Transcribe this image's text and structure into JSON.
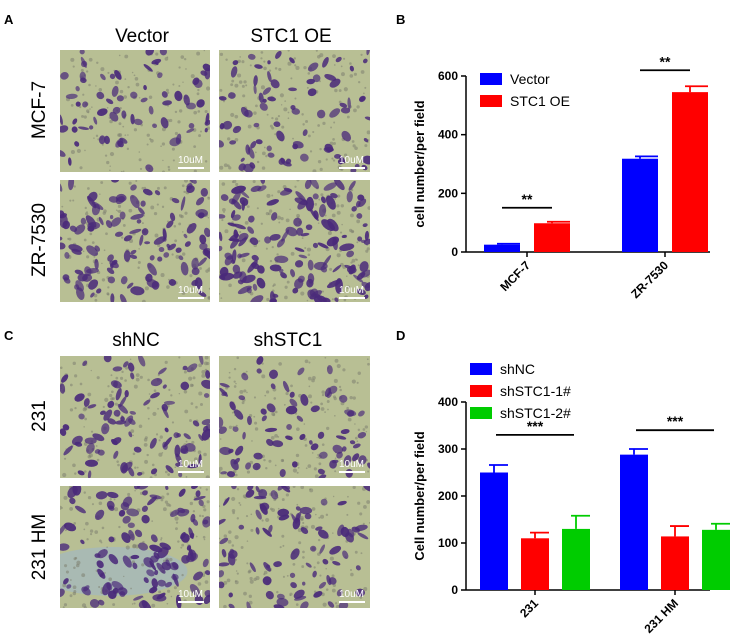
{
  "panels": {
    "A": {
      "letter": "A",
      "columns": [
        "Vector",
        "STC1 OE"
      ],
      "rows": [
        "MCF-7",
        "ZR-7530"
      ],
      "scale_label": "10uM"
    },
    "C": {
      "letter": "C",
      "columns": [
        "shNC",
        "shSTC1"
      ],
      "rows": [
        "231",
        "231 HM"
      ],
      "scale_label": "10uM"
    },
    "B": {
      "letter": "B"
    },
    "D": {
      "letter": "D"
    }
  },
  "colors": {
    "blue": "#0000ff",
    "red": "#ff0000",
    "green": "#00cc00",
    "micro_bg": "#b8bf94",
    "cell": "#4a2a7a"
  },
  "chart_data": [
    {
      "type": "bar",
      "panel": "B",
      "ylabel": "cell number/per field",
      "ylim": [
        0,
        600
      ],
      "yticks": [
        0,
        200,
        400,
        600
      ],
      "categories": [
        "MCF-7",
        "ZR-7530"
      ],
      "series": [
        {
          "name": "Vector",
          "color": "#0000ff",
          "values": [
            25,
            318
          ],
          "errors": [
            3,
            8
          ]
        },
        {
          "name": "STC1 OE",
          "color": "#ff0000",
          "values": [
            98,
            545
          ],
          "errors": [
            5,
            20
          ]
        }
      ],
      "significance": [
        "**",
        "**"
      ],
      "legend": "top-left"
    },
    {
      "type": "bar",
      "panel": "D",
      "ylabel": "Cell number/per field",
      "ylim": [
        0,
        400
      ],
      "yticks": [
        0,
        100,
        200,
        300,
        400
      ],
      "categories": [
        "231",
        "231 HM"
      ],
      "series": [
        {
          "name": "shNC",
          "color": "#0000ff",
          "values": [
            250,
            288
          ],
          "errors": [
            16,
            12
          ]
        },
        {
          "name": "shSTC1-1#",
          "color": "#ff0000",
          "values": [
            110,
            114
          ],
          "errors": [
            12,
            22
          ]
        },
        {
          "name": "shSTC1-2#",
          "color": "#00cc00",
          "values": [
            130,
            128
          ],
          "errors": [
            28,
            13
          ]
        }
      ],
      "significance": [
        "***",
        "***"
      ],
      "legend": "top-left"
    }
  ]
}
